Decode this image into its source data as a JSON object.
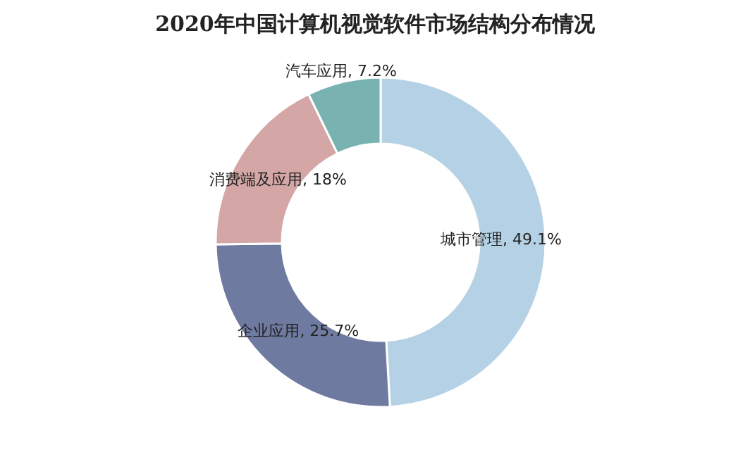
{
  "chart_data": {
    "type": "donut",
    "title": "2020年中国计算机视觉软件市场结构分布情况",
    "categories": [
      "城市管理",
      "企业应用",
      "消费端及应用",
      "汽车应用"
    ],
    "values": [
      49.1,
      25.7,
      18,
      7.2
    ],
    "colors": [
      "#b5d1e5",
      "#6f7aa1",
      "#d4a6a6",
      "#79b3b1"
    ],
    "value_labels": [
      ", 49.1%",
      ", 25.7%",
      ", 18%",
      ", 7.2%"
    ]
  }
}
